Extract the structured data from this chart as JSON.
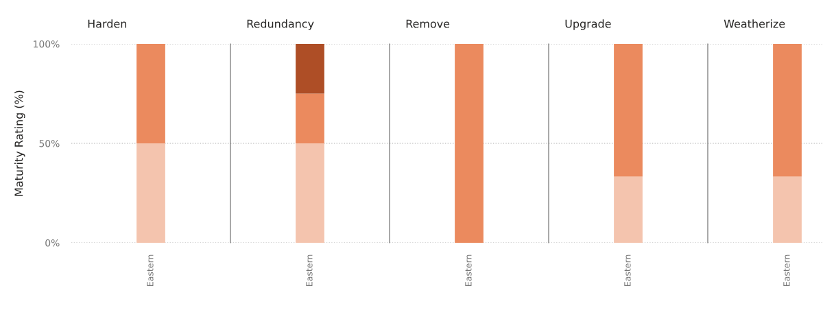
{
  "chart_data": [
    {
      "type": "bar",
      "title": "Harden",
      "ylabel": "Maturity Rating (%)",
      "stacked": true,
      "categories": [
        "Eastern"
      ],
      "ylim": [
        0,
        100
      ],
      "yticks": [
        {
          "value": 0,
          "label": "0%"
        },
        {
          "value": 50,
          "label": "50%"
        },
        {
          "value": 100,
          "label": "100%"
        }
      ],
      "grid": "y",
      "line_style": "dotted",
      "series": [
        {
          "color": "#f4c4ae",
          "values": [
            50
          ]
        },
        {
          "color": "#eb8a5e",
          "values": [
            50
          ]
        }
      ]
    },
    {
      "type": "bar",
      "title": "Redundancy",
      "stacked": true,
      "categories": [
        "Eastern"
      ],
      "ylim": [
        0,
        100
      ],
      "yticks": [
        {
          "value": 0,
          "label": null
        },
        {
          "value": 50,
          "label": null
        },
        {
          "value": 100,
          "label": null
        }
      ],
      "grid": "y",
      "line_style": "dotted",
      "tick_labels": "x",
      "series": [
        {
          "color": "#f4c4ae",
          "values": [
            50
          ]
        },
        {
          "color": "#eb8a5e",
          "values": [
            25
          ]
        },
        {
          "color": "#ae4e26",
          "values": [
            25
          ]
        }
      ]
    },
    {
      "type": "bar",
      "title": "Remove",
      "stacked": true,
      "categories": [
        "Eastern"
      ],
      "ylim": [
        0,
        100
      ],
      "yticks": [
        {
          "value": 0,
          "label": null
        },
        {
          "value": 50,
          "label": null
        },
        {
          "value": 100,
          "label": null
        }
      ],
      "grid": "y",
      "line_style": "dotted",
      "tick_labels": "x",
      "series": [
        {
          "color": "#eb8a5e",
          "values": [
            100
          ]
        }
      ]
    },
    {
      "type": "bar",
      "title": "Upgrade",
      "stacked": true,
      "categories": [
        "Eastern"
      ],
      "ylim": [
        0,
        100
      ],
      "yticks": [
        {
          "value": 0,
          "label": null
        },
        {
          "value": 50,
          "label": null
        },
        {
          "value": 100,
          "label": null
        }
      ],
      "grid": "y",
      "line_style": "dotted",
      "tick_labels": "x",
      "series": [
        {
          "color": "#f4c4ae",
          "values": [
            33.3
          ]
        },
        {
          "color": "#eb8a5e",
          "values": [
            66.7
          ]
        }
      ]
    },
    {
      "type": "bar",
      "title": "Weatherize",
      "stacked": true,
      "categories": [
        "Eastern"
      ],
      "ylim": [
        0,
        100
      ],
      "yticks": [
        {
          "value": 0,
          "label": null
        },
        {
          "value": 50,
          "label": null
        },
        {
          "value": 100,
          "label": null
        }
      ],
      "grid": "y",
      "line_style": "dotted",
      "tick_labels": "x",
      "series": [
        {
          "color": "#f4c4ae",
          "values": [
            33.3
          ]
        },
        {
          "color": "#eb8a5e",
          "values": [
            66.7
          ]
        }
      ]
    }
  ]
}
